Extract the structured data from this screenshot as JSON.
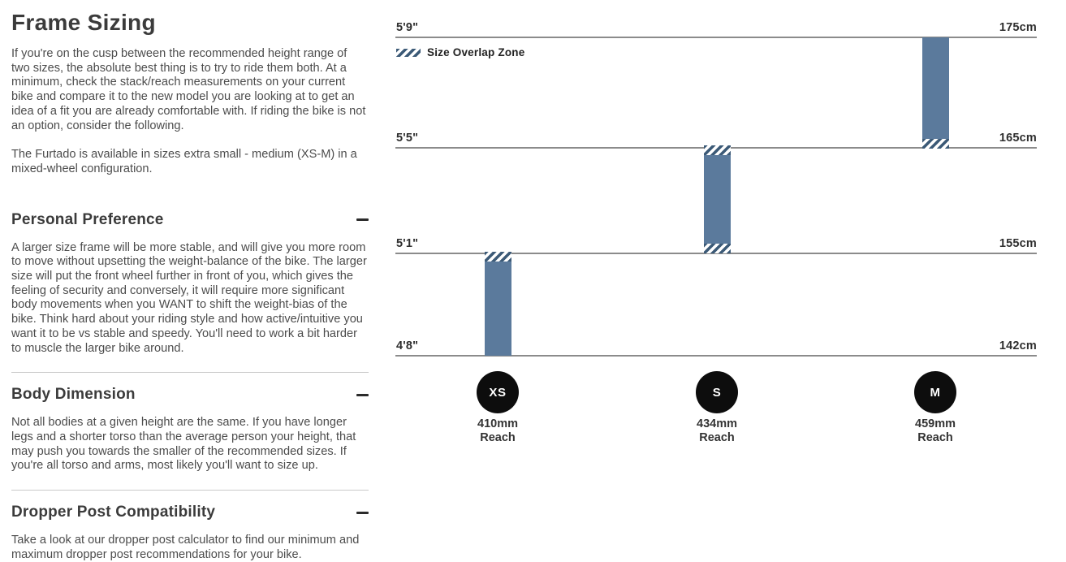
{
  "page": {
    "title": "Frame Sizing",
    "intro_paragraphs": [
      "If you're on the cusp between the recommended height range of two sizes, the absolute best thing is to try to ride them both. At a minimum, check the stack/reach measurements on your current bike and compare it to the new model you are looking at to get an idea of a fit you are already comfortable with. If riding the bike is not an option, consider the following.",
      "The Furtado is available in sizes extra small - medium (XS-M) in a mixed-wheel configuration."
    ],
    "sections": [
      {
        "title": "Personal Preference",
        "collapse_icon": "minus-icon",
        "body": "A larger size frame will be more stable, and will give you more room to move without upsetting the weight-balance of the bike. The larger size will put the front wheel further in front of you, which gives the feeling of security and conversely, it will require more significant body movements when you WANT to shift the weight-bias of the bike. Think hard about your riding style and how active/intuitive you want it to be vs stable and speedy. You'll need to work a bit harder to muscle the larger bike around."
      },
      {
        "title": "Body Dimension",
        "collapse_icon": "minus-icon",
        "body": "Not all bodies at a given height are the same. If you have longer legs and a shorter torso than the average person your height, that may push you towards the smaller of the recommended sizes. If you're all torso and arms, most likely you'll want to size up."
      },
      {
        "title": "Dropper Post Compatibility",
        "collapse_icon": "minus-icon",
        "body": "Take a look at our dropper post calculator to find our minimum and maximum dropper post recommendations for your bike."
      }
    ]
  },
  "chart_data": {
    "type": "bar",
    "orientation": "vertical-range",
    "legend_label": "Size Overlap Zone",
    "legend_position": "top-left",
    "grid": "horizontal-lines",
    "axis_lines": [
      {
        "imperial": "5'9\"",
        "metric": "175cm",
        "cm": 175
      },
      {
        "imperial": "5'5\"",
        "metric": "165cm",
        "cm": 165
      },
      {
        "imperial": "5'1\"",
        "metric": "155cm",
        "cm": 155
      },
      {
        "imperial": "4'8\"",
        "metric": "142cm",
        "cm": 142
      }
    ],
    "ylim_cm": [
      142,
      175
    ],
    "sizes": [
      {
        "label": "XS",
        "reach_text": "410mm",
        "reach_caption": "Reach",
        "reach_mm": 410,
        "height_range_imperial": [
          "4'8\"",
          "5'1\""
        ],
        "height_range_cm": [
          142,
          155
        ],
        "overlap_zone": "top"
      },
      {
        "label": "S",
        "reach_text": "434mm",
        "reach_caption": "Reach",
        "reach_mm": 434,
        "height_range_imperial": [
          "5'1\"",
          "5'5\""
        ],
        "height_range_cm": [
          155,
          165
        ],
        "overlap_zone": "top and bottom"
      },
      {
        "label": "M",
        "reach_text": "459mm",
        "reach_caption": "Reach",
        "reach_mm": 459,
        "height_range_imperial": [
          "5'5\"",
          "5'9\""
        ],
        "height_range_cm": [
          165,
          175
        ],
        "overlap_zone": "bottom"
      }
    ],
    "colors": {
      "bar": "#5b7a9c",
      "hatch_stripe": "#3c5a77",
      "axis_line": "#8b8b8b",
      "size_circle": "#0d0d0d",
      "text": "#2e2e2e"
    }
  }
}
